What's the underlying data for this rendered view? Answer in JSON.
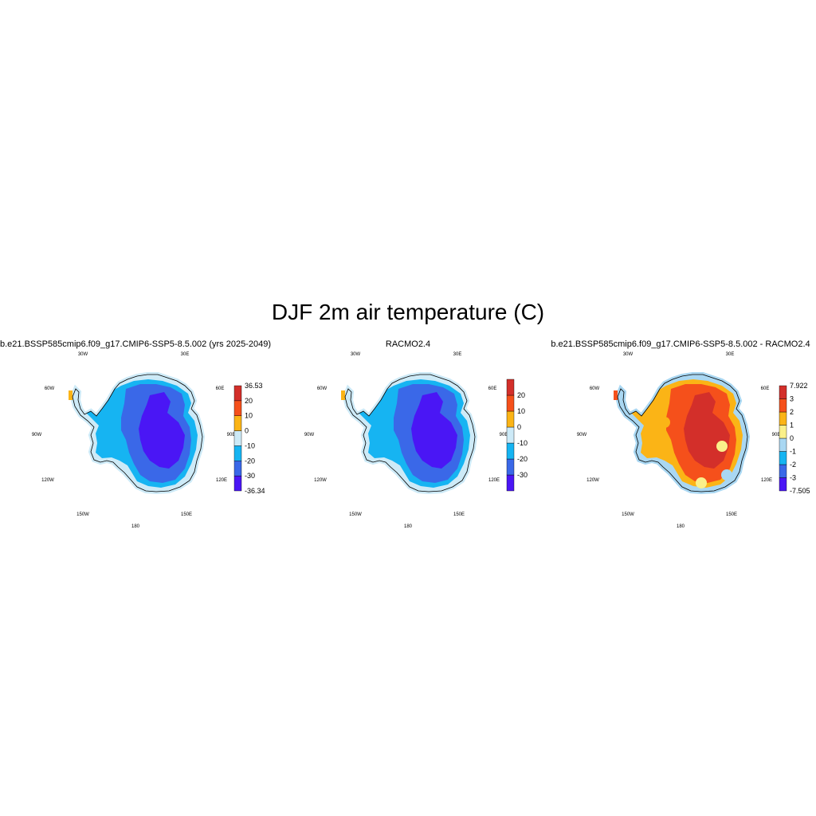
{
  "title": "DJF 2m air temperature (C)",
  "longitude_labels": {
    "top_left": "30W",
    "top_right": "30E",
    "upper_left": "60W",
    "upper_right": "60E",
    "mid_left": "90W",
    "mid_right": "90E",
    "lower_left": "120W",
    "lower_right": "120E",
    "bottom_left": "150W",
    "bottom_right": "150E",
    "bottom": "180"
  },
  "panels": [
    {
      "title": "b.e21.BSSP585cmip6.f09_g17.CMIP6-SSP5-8.5.002 (yrs 2025-2049)",
      "colorbar": {
        "colors": [
          "#4a16f5",
          "#3a68e8",
          "#16b4f2",
          "#cdeaf7",
          "#fbb416",
          "#f5501b",
          "#d32f2a"
        ],
        "labels": [
          "-36.34",
          "-30",
          "-20",
          "-10",
          "0",
          "10",
          "20",
          "36.53"
        ]
      },
      "zones": [
        "#cdeaf7",
        "#16b4f2",
        "#3a68e8",
        "#4a16f5"
      ]
    },
    {
      "title": "RACMO2.4",
      "colorbar": {
        "colors": [
          "#4a16f5",
          "#3a68e8",
          "#16b4f2",
          "#cdeaf7",
          "#fbb416",
          "#f5501b",
          "#d32f2a"
        ],
        "labels": [
          "",
          "-30",
          "-20",
          "-10",
          "0",
          "10",
          "20",
          ""
        ]
      },
      "zones": [
        "#cdeaf7",
        "#16b4f2",
        "#3a68e8",
        "#4a16f5"
      ]
    },
    {
      "title": "b.e21.BSSP585cmip6.f09_g17.CMIP6-SSP5-8.5.002 - RACMO2.4",
      "colorbar": {
        "colors": [
          "#4a16f5",
          "#3a68e8",
          "#16b4f2",
          "#a9d7f2",
          "#faf08a",
          "#fbb416",
          "#f5501b",
          "#d32f2a"
        ],
        "labels": [
          "-7.505",
          "-3",
          "-2",
          "-1",
          "0",
          "1",
          "2",
          "3",
          "7.922"
        ]
      },
      "zones": [
        "#a9d7f2",
        "#fbb416",
        "#f5501b",
        "#d32f2a"
      ]
    }
  ]
}
